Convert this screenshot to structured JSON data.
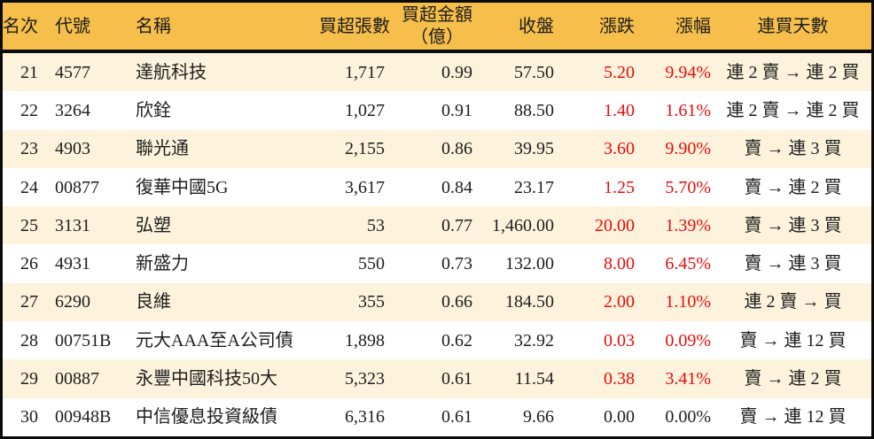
{
  "colors": {
    "header_bg": "#f6be4a",
    "row_alt_bg": "#fdf3dc",
    "row_bg": "#ffffff",
    "border": "#0a0a0a",
    "text": "#1d1d1d",
    "up_text": "#e80b0b"
  },
  "header": {
    "rank": "名次",
    "code": "代號",
    "name": "名稱",
    "volume": "買超張數",
    "amount_line1": "買超金額",
    "amount_line2": "（億）",
    "close": "收盤",
    "change": "漲跌",
    "change_pct": "漲幅",
    "streak": "連買天數"
  },
  "chart_data": {
    "type": "table",
    "title": "",
    "columns": [
      "名次",
      "代號",
      "名稱",
      "買超張數",
      "買超金額（億）",
      "收盤",
      "漲跌",
      "漲幅",
      "連買天數"
    ],
    "rows": [
      {
        "rank": "21",
        "code": "4577",
        "name": "達航科技",
        "volume": "1,717",
        "amount": "0.99",
        "close": "57.50",
        "change": "5.20",
        "change_pct": "9.94%",
        "streak": "連 2 賣 → 連 2 買",
        "change_color": "red"
      },
      {
        "rank": "22",
        "code": "3264",
        "name": "欣銓",
        "volume": "1,027",
        "amount": "0.91",
        "close": "88.50",
        "change": "1.40",
        "change_pct": "1.61%",
        "streak": "連 2 賣 → 連 2 買",
        "change_color": "red"
      },
      {
        "rank": "23",
        "code": "4903",
        "name": "聯光通",
        "volume": "2,155",
        "amount": "0.86",
        "close": "39.95",
        "change": "3.60",
        "change_pct": "9.90%",
        "streak": "賣 → 連 3 買",
        "change_color": "red"
      },
      {
        "rank": "24",
        "code": "00877",
        "name": "復華中國5G",
        "volume": "3,617",
        "amount": "0.84",
        "close": "23.17",
        "change": "1.25",
        "change_pct": "5.70%",
        "streak": "賣 → 連 2 買",
        "change_color": "red"
      },
      {
        "rank": "25",
        "code": "3131",
        "name": "弘塑",
        "volume": "53",
        "amount": "0.77",
        "close": "1,460.00",
        "change": "20.00",
        "change_pct": "1.39%",
        "streak": "賣 → 連 3 買",
        "change_color": "red"
      },
      {
        "rank": "26",
        "code": "4931",
        "name": "新盛力",
        "volume": "550",
        "amount": "0.73",
        "close": "132.00",
        "change": "8.00",
        "change_pct": "6.45%",
        "streak": "賣 → 連 3 買",
        "change_color": "red"
      },
      {
        "rank": "27",
        "code": "6290",
        "name": "良維",
        "volume": "355",
        "amount": "0.66",
        "close": "184.50",
        "change": "2.00",
        "change_pct": "1.10%",
        "streak": "連 2 賣 → 買",
        "change_color": "red"
      },
      {
        "rank": "28",
        "code": "00751B",
        "name": "元大AAA至A公司債",
        "volume": "1,898",
        "amount": "0.62",
        "close": "32.92",
        "change": "0.03",
        "change_pct": "0.09%",
        "streak": "賣 → 連 12 買",
        "change_color": "red"
      },
      {
        "rank": "29",
        "code": "00887",
        "name": "永豐中國科技50大",
        "volume": "5,323",
        "amount": "0.61",
        "close": "11.54",
        "change": "0.38",
        "change_pct": "3.41%",
        "streak": "賣 → 連 2 買",
        "change_color": "red"
      },
      {
        "rank": "30",
        "code": "00948B",
        "name": "中信優息投資級債",
        "volume": "6,316",
        "amount": "0.61",
        "close": "9.66",
        "change": "0.00",
        "change_pct": "0.00%",
        "streak": "賣 → 連 12 買",
        "change_color": "black"
      }
    ]
  }
}
